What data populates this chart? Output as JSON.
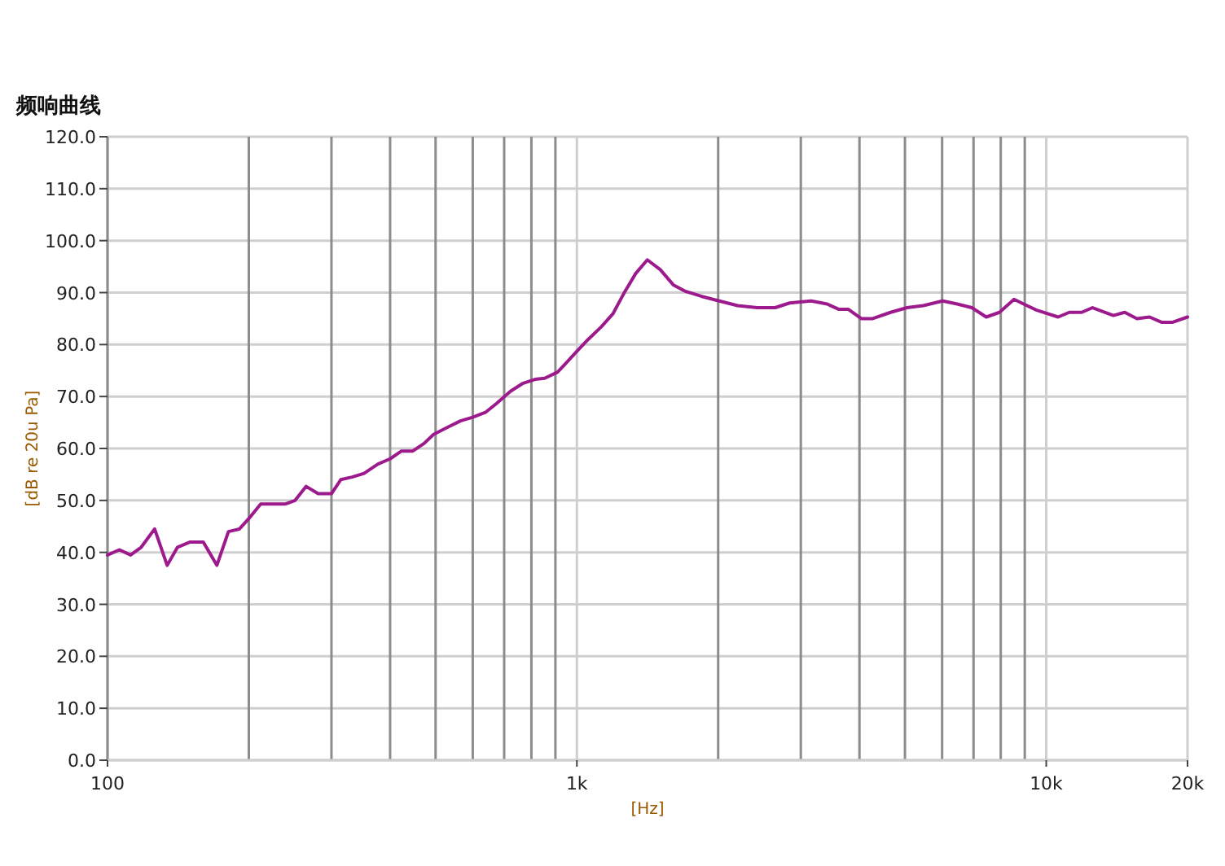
{
  "chart_data": {
    "type": "line",
    "title": "频响曲线",
    "xlabel": "[Hz]",
    "ylabel": "[dB re 20u Pa]",
    "log": "x",
    "grid": true,
    "color": "#9c1a8c",
    "xlim": [
      100,
      20000
    ],
    "ylim": [
      0,
      120
    ],
    "xticks": [
      {
        "value": 100,
        "label": "100"
      },
      {
        "value": 1000,
        "label": "1k"
      },
      {
        "value": 10000,
        "label": "10k"
      },
      {
        "value": 20000,
        "label": "20k"
      }
    ],
    "yticks": [
      {
        "value": 0,
        "label": "0.0"
      },
      {
        "value": 10,
        "label": "10.0"
      },
      {
        "value": 20,
        "label": "20.0"
      },
      {
        "value": 30,
        "label": "30.0"
      },
      {
        "value": 40,
        "label": "40.0"
      },
      {
        "value": 50,
        "label": "50.0"
      },
      {
        "value": 60,
        "label": "60.0"
      },
      {
        "value": 70,
        "label": "70.0"
      },
      {
        "value": 80,
        "label": "80.0"
      },
      {
        "value": 90,
        "label": "90.0"
      },
      {
        "value": 100,
        "label": "100.0"
      },
      {
        "value": 110,
        "label": "110.0"
      },
      {
        "value": 120,
        "label": "120.0"
      }
    ],
    "x": [
      100,
      106,
      112,
      118,
      126,
      134,
      141,
      150,
      160,
      171,
      181,
      191,
      200,
      212,
      239,
      251,
      265,
      281,
      300,
      314,
      332,
      352,
      377,
      400,
      423,
      447,
      473,
      495,
      528,
      565,
      600,
      640,
      675,
      722,
      766,
      815,
      854,
      910,
      950,
      1000,
      1057,
      1127,
      1193,
      1262,
      1335,
      1413,
      1506,
      1604,
      1697,
      1840,
      2010,
      2200,
      2420,
      2645,
      2840,
      3155,
      3414,
      3610,
      3785,
      4035,
      4270,
      4660,
      5050,
      5470,
      6015,
      6460,
      6940,
      7450,
      7950,
      8540,
      9100,
      9550,
      10600,
      11200,
      11900,
      12550,
      13900,
      14700,
      15600,
      16600,
      17600,
      18600,
      20000
    ],
    "values": [
      39.5,
      40.5,
      39.5,
      41,
      44.5,
      37.5,
      41,
      42,
      42,
      37.5,
      44,
      44.5,
      46.5,
      49.3,
      49.3,
      50,
      52.7,
      51.3,
      51.3,
      54,
      54.5,
      55.2,
      57,
      58,
      59.5,
      59.5,
      61,
      62.7,
      64,
      65.3,
      66,
      67,
      68.7,
      71,
      72.5,
      73.3,
      73.5,
      74.7,
      76.5,
      78.7,
      81,
      83.4,
      85.9,
      90,
      93.7,
      96.3,
      94.4,
      91.5,
      90.3,
      89.3,
      88.4,
      87.5,
      87.1,
      87.1,
      88,
      88.4,
      87.8,
      86.8,
      86.8,
      85,
      85,
      86.2,
      87.1,
      87.5,
      88.4,
      87.8,
      87.1,
      85.3,
      86.2,
      88.7,
      87.5,
      86.6,
      85.3,
      86.2,
      86.2,
      87.1,
      85.6,
      86.2,
      85,
      85.3,
      84.3,
      84.3,
      85.3
    ]
  }
}
